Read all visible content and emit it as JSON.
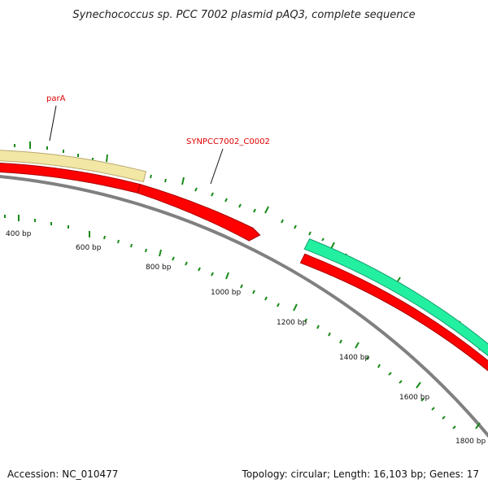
{
  "title": "Synechococcus sp. PCC 7002 plasmid pAQ3, complete sequence",
  "footer": {
    "accession": "Accession: NC_010477",
    "summary": "Topology: circular; Length: 16,103 bp; Genes: 17"
  },
  "plasmid": {
    "length_bp": 16103,
    "topology": "circular",
    "gene_count": 17
  },
  "scale_labels": [
    "400 bp",
    "600 bp",
    "800 bp",
    "1000 bp",
    "1200 bp",
    "1400 bp",
    "1600 bp",
    "1800 bp"
  ],
  "gene_labels": {
    "parA": "parA",
    "syn": "SYNPCC7002_C0002"
  },
  "colors": {
    "gene_forward_light": "#f3e7a5",
    "gene_red": "#ff0000",
    "gene_green": "#22f0a0",
    "backbone": "#808080",
    "tick": "#1a8a1a",
    "label_red": "#e00000"
  }
}
